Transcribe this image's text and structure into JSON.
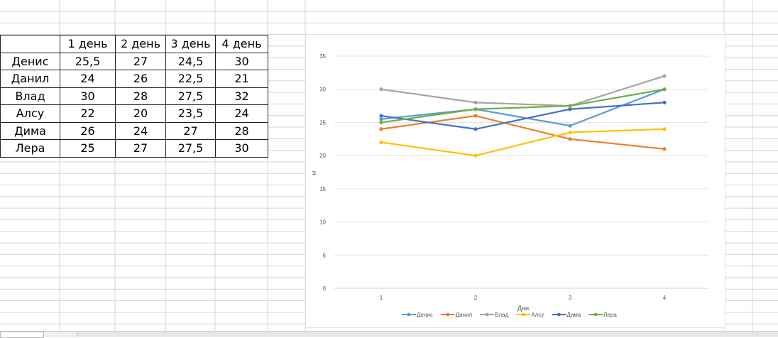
{
  "table": {
    "headers": [
      "",
      "1 день",
      "2 день",
      "3 день",
      "4 день"
    ],
    "rows": [
      [
        "Денис",
        "25,5",
        "27",
        "24,5",
        "30"
      ],
      [
        "Данил",
        "24",
        "26",
        "22,5",
        "21"
      ],
      [
        "Влад",
        "30",
        "28",
        "27,5",
        "32"
      ],
      [
        "Алсу",
        "22",
        "20",
        "23,5",
        "24"
      ],
      [
        "Дима",
        "26",
        "24",
        "27",
        "28"
      ],
      [
        "Лера",
        "25",
        "27",
        "27,5",
        "30"
      ]
    ]
  },
  "chart_data": {
    "type": "line",
    "title": "",
    "xlabel": "Дни",
    "ylabel": "кг",
    "x": [
      1,
      2,
      3,
      4
    ],
    "ylim": [
      0,
      35
    ],
    "yticks": [
      0,
      5,
      10,
      15,
      20,
      25,
      30,
      35
    ],
    "grid": true,
    "legend": "bottom",
    "series": [
      {
        "name": "Денис",
        "values": [
          25.5,
          27,
          24.5,
          30
        ],
        "color": "#5B9BD5"
      },
      {
        "name": "Данил",
        "values": [
          24,
          26,
          22.5,
          21
        ],
        "color": "#ED7D31"
      },
      {
        "name": "Влад",
        "values": [
          30,
          28,
          27.5,
          32
        ],
        "color": "#A5A5A5"
      },
      {
        "name": "Алсу",
        "values": [
          22,
          20,
          23.5,
          24
        ],
        "color": "#FFC000"
      },
      {
        "name": "Дима",
        "values": [
          26,
          24,
          27,
          28
        ],
        "color": "#4472C4"
      },
      {
        "name": "Лера",
        "values": [
          25,
          27,
          27.5,
          30
        ],
        "color": "#70AD47"
      }
    ]
  }
}
